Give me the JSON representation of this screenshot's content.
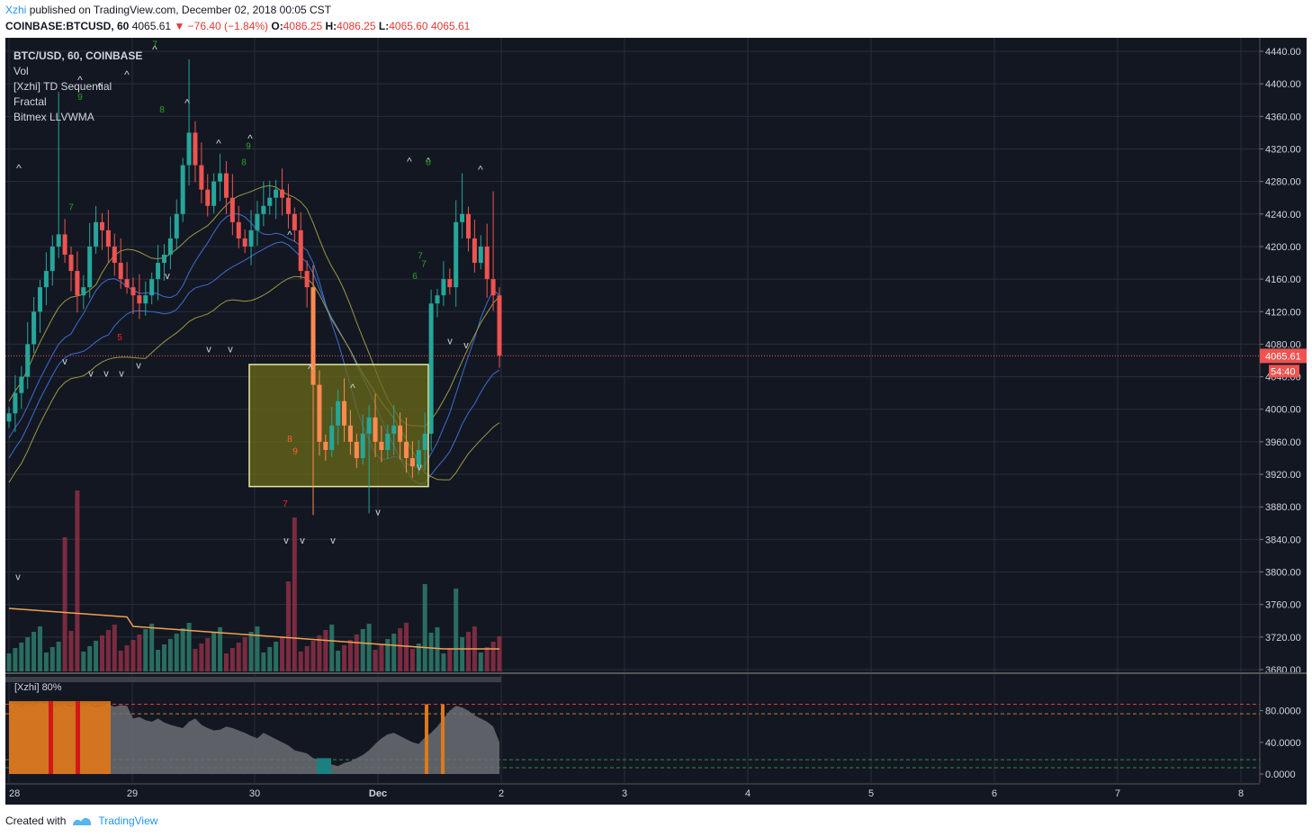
{
  "header": {
    "author": "Xzhi",
    "published": "published on TradingView.com, December 02, 2018 00:05 CST",
    "symbol": "COINBASE:BTCUSD, 60",
    "last": "4065.61",
    "change": "−76.40 (−1.84%)",
    "o_label": "O:",
    "o": "4086.25",
    "h_label": "H:",
    "h": "4086.25",
    "l_label": "L:",
    "l": "4065.60",
    "c": "4065.61"
  },
  "legend": {
    "items": [
      "BTC/USD, 60, COINBASE",
      "Vol",
      "[Xzhi] TD Sequential",
      "Fractal",
      "Bitmex LLVWMA"
    ]
  },
  "price_label": "4065.61",
  "countdown": "54:40",
  "indicator_label": "[Xzhi] 80%",
  "footer": {
    "created": "Created with",
    "brand": "TradingView"
  },
  "colors": {
    "bg": "#131722",
    "up": "#26a69a",
    "down": "#ef5350",
    "box_fill": "#6b6b1a",
    "box_stroke": "#e8e8a0",
    "accent": "#2196f3"
  },
  "chart_data": {
    "type": "candlestick",
    "y_ticks": [
      "4440.00",
      "4400.00",
      "4360.00",
      "4320.00",
      "4280.00",
      "4240.00",
      "4200.00",
      "4160.00",
      "4120.00",
      "4080.00",
      "4040.00",
      "4000.00",
      "3960.00",
      "3920.00",
      "3880.00",
      "3840.00",
      "3800.00",
      "3760.00",
      "3720.00",
      "3680.00"
    ],
    "ylim": [
      3680,
      4440
    ],
    "x_ticks": [
      "28",
      "29",
      "30",
      "Dec",
      "2",
      "3",
      "4",
      "5",
      "6",
      "7",
      "8"
    ],
    "osc_ticks": [
      "80.0000",
      "40.0000",
      "0.0000"
    ],
    "osc_ylim": [
      0,
      100
    ],
    "last_price": 4065.61,
    "highlight_box": {
      "from_price": 3905,
      "to_price": 4055
    },
    "td_labels": [
      "7",
      "9",
      "8",
      "7",
      "8",
      "9",
      "8",
      "7",
      "7",
      "6",
      "5",
      "8",
      "9",
      "7"
    ]
  }
}
